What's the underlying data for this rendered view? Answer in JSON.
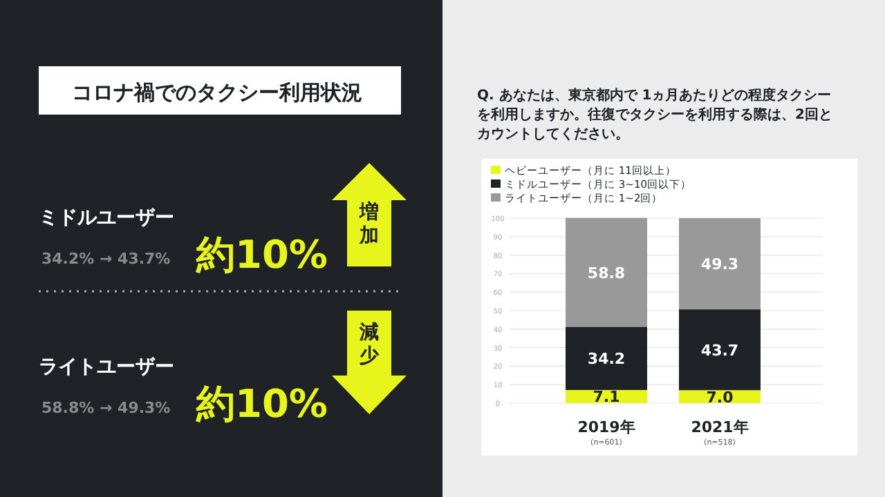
{
  "chart_data": [
    {
      "type": "other",
      "title": "コロナ禍でのタクシー利用状況",
      "annotations": [
        "ミドルユーザー",
        "34.2% → 43.7%",
        "約10%",
        "増加",
        "ライトユーザー",
        "58.8% → 49.3%",
        "約10%",
        "減少"
      ]
    },
    {
      "type": "bar",
      "stacked": true,
      "title": "Q. あなたは、東京都内で 1ヵ月あたりどの程度タクシーを利用しますか。往復でタクシーを利用する際は、2回とカウントしてください。",
      "categories": [
        "2019年\n(n=601)",
        "2021年\n(n=518)"
      ],
      "series": [
        {
          "name": "ヘビーユーザー（月に 11回以上）",
          "color": "#e8f51c",
          "values": [
            7.1,
            7.0
          ],
          "value_labels": [
            "7.1",
            "7.0"
          ]
        },
        {
          "name": "ミドルユーザー（月に 3~10回以下）",
          "color": "#1f2328",
          "values": [
            34.2,
            43.7
          ],
          "value_labels": [
            "34.2",
            "43.7"
          ]
        },
        {
          "name": "ライトユーザー（月に 1~2回）",
          "color": "#999999",
          "values": [
            58.8,
            49.3
          ],
          "value_labels": [
            "58.8",
            "49.3"
          ]
        }
      ],
      "ylim": [
        0,
        100
      ],
      "yticks": [
        0,
        10,
        20,
        30,
        40,
        50,
        60,
        70,
        80,
        90,
        100
      ],
      "grid": "y",
      "legend": "top"
    }
  ]
}
